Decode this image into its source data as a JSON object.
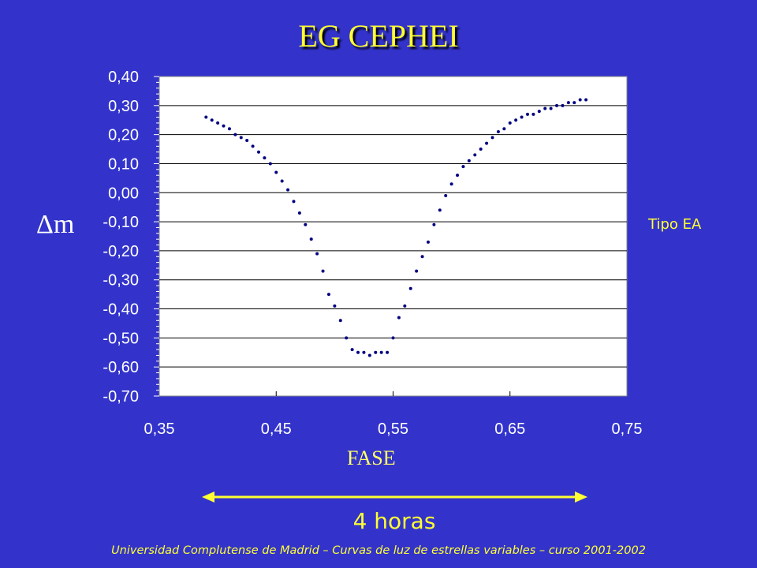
{
  "title": "EG CEPHEI",
  "chart_data": {
    "type": "scatter",
    "xlabel": "FASE",
    "ylabel": "Δm",
    "xlim": [
      0.35,
      0.75
    ],
    "ylim": [
      -0.7,
      0.4
    ],
    "xticks": [
      "0,35",
      "0,45",
      "0,55",
      "0,65",
      "0,75"
    ],
    "yticks": [
      "0,40",
      "0,30",
      "0,20",
      "0,10",
      "0,00",
      "-0,10",
      "-0,20",
      "-0,30",
      "-0,40",
      "-0,50",
      "-0,60",
      "-0,70"
    ],
    "grid": "horizontal",
    "series": [
      {
        "color": "#000080",
        "x": [
          0.39,
          0.395,
          0.4,
          0.405,
          0.41,
          0.415,
          0.42,
          0.425,
          0.43,
          0.435,
          0.44,
          0.445,
          0.45,
          0.455,
          0.46,
          0.465,
          0.47,
          0.475,
          0.48,
          0.485,
          0.49,
          0.495,
          0.5,
          0.505,
          0.51,
          0.515,
          0.52,
          0.525,
          0.53,
          0.535,
          0.54,
          0.545,
          0.55,
          0.555,
          0.56,
          0.565,
          0.57,
          0.575,
          0.58,
          0.585,
          0.59,
          0.595,
          0.6,
          0.605,
          0.61,
          0.615,
          0.62,
          0.625,
          0.63,
          0.635,
          0.64,
          0.645,
          0.65,
          0.655,
          0.66,
          0.665,
          0.67,
          0.675,
          0.68,
          0.685,
          0.69,
          0.695,
          0.7,
          0.705,
          0.71,
          0.715
        ],
        "y": [
          0.26,
          0.25,
          0.24,
          0.23,
          0.22,
          0.2,
          0.19,
          0.18,
          0.16,
          0.14,
          0.12,
          0.1,
          0.07,
          0.04,
          0.01,
          -0.03,
          -0.07,
          -0.11,
          -0.16,
          -0.21,
          -0.27,
          -0.35,
          -0.39,
          -0.44,
          -0.5,
          -0.54,
          -0.55,
          -0.55,
          -0.56,
          -0.55,
          -0.55,
          -0.55,
          -0.5,
          -0.43,
          -0.39,
          -0.33,
          -0.27,
          -0.22,
          -0.17,
          -0.11,
          -0.06,
          -0.01,
          0.03,
          0.06,
          0.09,
          0.11,
          0.13,
          0.15,
          0.17,
          0.19,
          0.21,
          0.22,
          0.24,
          0.25,
          0.26,
          0.27,
          0.27,
          0.28,
          0.29,
          0.29,
          0.3,
          0.3,
          0.31,
          0.31,
          0.32,
          0.32
        ]
      }
    ]
  },
  "annotations": {
    "type_label": "Tipo EA",
    "duration_label": "4 horas"
  },
  "colors": {
    "background": "#3333cc",
    "plot_area": "#ffffff",
    "accent": "#ffff33",
    "points": "#000080"
  },
  "footer": "Universidad Complutense de Madrid – Curvas de luz de estrellas variables  – curso 2001-2002"
}
